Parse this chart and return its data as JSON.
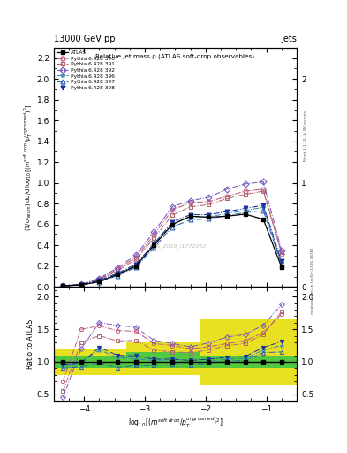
{
  "title_top": "13000 GeV pp",
  "title_right": "Jets",
  "plot_title": "Relative jet mass ρ (ATLAS soft-drop observables)",
  "watermark": "ATLAS_2019_I1772062",
  "right_label_top": "Rivet 3.1.10, ≥ 3M events",
  "right_label_bot": "mcplots.cern.ch [arXiv:1306.3436]",
  "ylabel_ratio": "Ratio to ATLAS",
  "xlim": [
    -4.5,
    -0.5
  ],
  "ylim_main": [
    0,
    2.3
  ],
  "ylim_ratio": [
    0.4,
    2.15
  ],
  "xdata": [
    -4.35,
    -4.05,
    -3.75,
    -3.45,
    -3.15,
    -2.85,
    -2.55,
    -2.25,
    -1.95,
    -1.65,
    -1.35,
    -1.05,
    -0.75
  ],
  "atlas_y": [
    0.01,
    0.02,
    0.05,
    0.12,
    0.2,
    0.4,
    0.6,
    0.68,
    0.67,
    0.68,
    0.7,
    0.65,
    0.19
  ],
  "series": [
    {
      "label": "Pythia 6.428 390",
      "color": "#c05878",
      "marker": "o",
      "linestyle": "-.",
      "filled": false,
      "y": [
        0.01,
        0.025,
        0.075,
        0.17,
        0.285,
        0.5,
        0.74,
        0.81,
        0.82,
        0.87,
        0.92,
        0.94,
        0.32
      ]
    },
    {
      "label": "Pythia 6.428 391",
      "color": "#b06870",
      "marker": "s",
      "linestyle": "-.",
      "filled": false,
      "y": [
        0.01,
        0.025,
        0.068,
        0.155,
        0.265,
        0.47,
        0.69,
        0.77,
        0.79,
        0.85,
        0.89,
        0.92,
        0.33
      ]
    },
    {
      "label": "Pythia 6.428 392",
      "color": "#7855c0",
      "marker": "D",
      "linestyle": "-.",
      "filled": false,
      "y": [
        0.01,
        0.025,
        0.082,
        0.185,
        0.305,
        0.53,
        0.77,
        0.83,
        0.86,
        0.94,
        0.99,
        1.01,
        0.35
      ]
    },
    {
      "label": "Pythia 6.428 396",
      "color": "#3888b0",
      "marker": "*",
      "linestyle": "-.",
      "filled": false,
      "y": [
        0.01,
        0.02,
        0.058,
        0.128,
        0.208,
        0.405,
        0.605,
        0.675,
        0.675,
        0.705,
        0.735,
        0.765,
        0.235
      ]
    },
    {
      "label": "Pythia 6.428 397",
      "color": "#2860b0",
      "marker": "^",
      "linestyle": "-.",
      "filled": false,
      "y": [
        0.01,
        0.018,
        0.048,
        0.108,
        0.188,
        0.375,
        0.575,
        0.645,
        0.655,
        0.685,
        0.715,
        0.735,
        0.215
      ]
    },
    {
      "label": "Pythia 6.428 398",
      "color": "#1830a0",
      "marker": "v",
      "linestyle": "-.",
      "filled": true,
      "y": [
        0.01,
        0.02,
        0.062,
        0.132,
        0.218,
        0.415,
        0.625,
        0.695,
        0.695,
        0.725,
        0.755,
        0.785,
        0.245
      ]
    }
  ],
  "ratio_series": [
    [
      0.7,
      1.5,
      1.55,
      1.48,
      1.47,
      1.28,
      1.25,
      1.2,
      1.23,
      1.28,
      1.32,
      1.45,
      1.73
    ],
    [
      0.55,
      1.3,
      1.4,
      1.32,
      1.33,
      1.18,
      1.15,
      1.14,
      1.18,
      1.25,
      1.28,
      1.42,
      1.77
    ],
    [
      0.45,
      1.2,
      1.6,
      1.56,
      1.53,
      1.33,
      1.28,
      1.23,
      1.29,
      1.38,
      1.42,
      1.56,
      1.88
    ],
    [
      0.93,
      1.0,
      1.18,
      1.07,
      1.04,
      1.02,
      1.01,
      0.99,
      1.01,
      1.04,
      1.05,
      1.18,
      1.25
    ],
    [
      0.9,
      0.92,
      0.98,
      0.91,
      0.94,
      0.94,
      0.96,
      0.95,
      0.98,
      1.01,
      1.02,
      1.14,
      1.15
    ],
    [
      0.96,
      0.98,
      1.22,
      1.1,
      1.09,
      1.04,
      1.04,
      1.02,
      1.04,
      1.07,
      1.08,
      1.22,
      1.31
    ]
  ],
  "yticks_main": [
    0,
    0.2,
    0.4,
    0.6,
    0.8,
    1.0,
    1.2,
    1.4,
    1.6,
    1.8,
    2.0,
    2.2
  ],
  "yticks_ratio": [
    0.5,
    1.0,
    1.5,
    2.0
  ],
  "xticks": [
    -4,
    -3,
    -2,
    -1
  ]
}
